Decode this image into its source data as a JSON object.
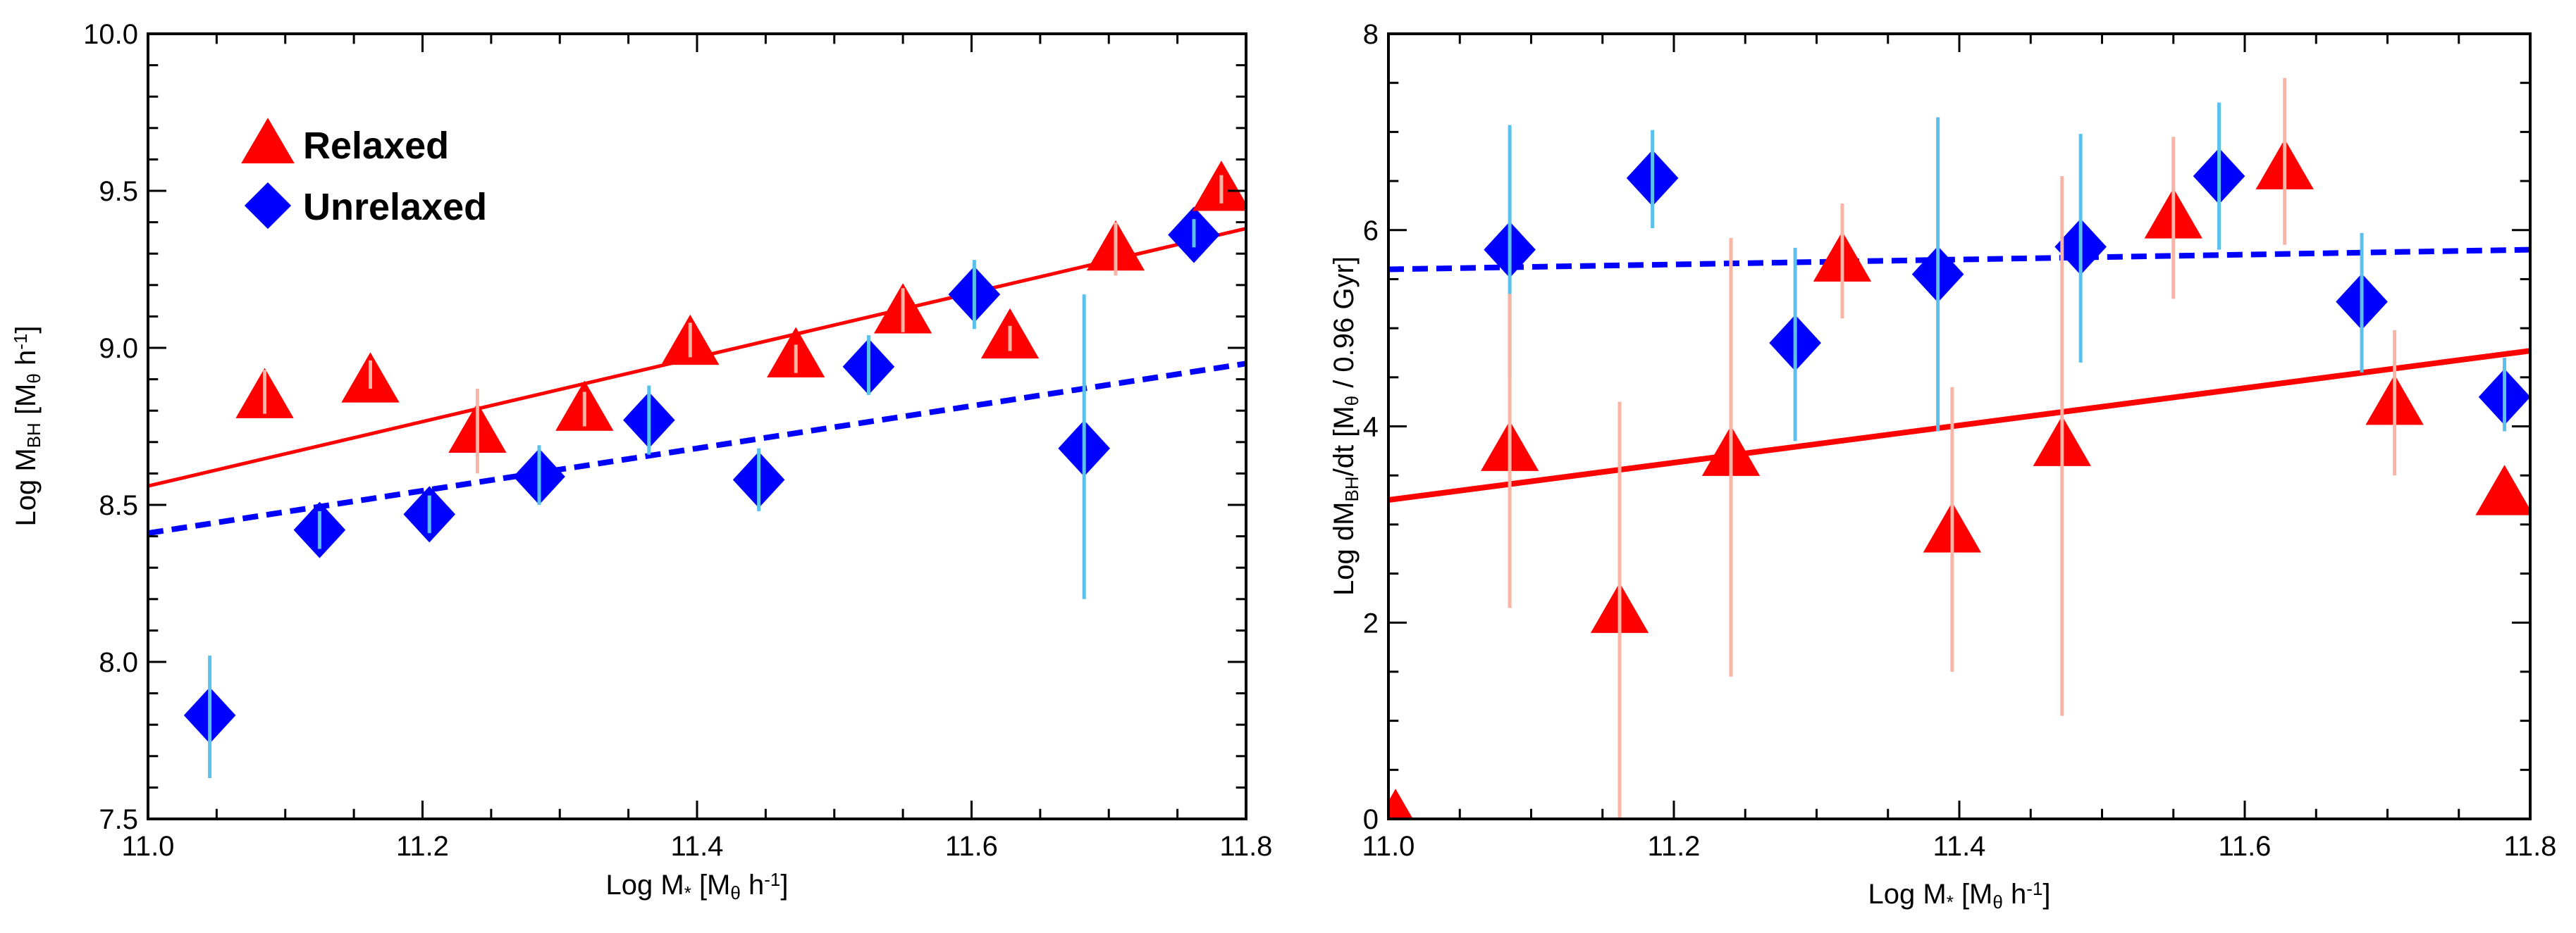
{
  "chart_data": [
    {
      "type": "scatter",
      "id": "left",
      "xlim": [
        11.0,
        11.8
      ],
      "ylim": [
        7.5,
        10.0
      ],
      "xticks": [
        11.0,
        11.2,
        11.4,
        11.6,
        11.8
      ],
      "xtick_labels": [
        "11.0",
        "11.2",
        "11.4",
        "11.6",
        "11.8"
      ],
      "yticks": [
        7.5,
        8.0,
        8.5,
        9.0,
        9.5,
        10.0
      ],
      "ytick_labels": [
        "7.5",
        "8.0",
        "8.5",
        "9.0",
        "9.5",
        "10.0"
      ],
      "xlabel": {
        "pre": "Log M",
        "sub": "*",
        "post": " [M",
        "sub2": "θ",
        "post2": " h",
        "sup": "-1",
        "end": "]"
      },
      "ylabel": {
        "pre": "Log M",
        "sub": "BH",
        "post": " [M",
        "sub2": "θ",
        "post2": " h",
        "sup": "-1",
        "end": "]"
      },
      "legend": {
        "position": "top-left",
        "entries": [
          {
            "name": "Relaxed",
            "marker": "triangle",
            "color": "#ff0000"
          },
          {
            "name": "Unrelaxed",
            "marker": "diamond",
            "color": "#0000ff"
          }
        ]
      },
      "series": [
        {
          "name": "Relaxed",
          "marker": "triangle",
          "color": "#ff0000",
          "err_color": "#f8b4a4",
          "points": [
            {
              "x": 11.085,
              "y": 8.84,
              "lo": 8.79,
              "hi": 8.93
            },
            {
              "x": 11.162,
              "y": 8.89,
              "lo": 8.87,
              "hi": 8.96
            },
            {
              "x": 11.24,
              "y": 8.73,
              "lo": 8.6,
              "hi": 8.87
            },
            {
              "x": 11.318,
              "y": 8.8,
              "lo": 8.75,
              "hi": 8.86
            },
            {
              "x": 11.395,
              "y": 9.01,
              "lo": 8.97,
              "hi": 9.08
            },
            {
              "x": 11.472,
              "y": 8.97,
              "lo": 8.92,
              "hi": 9.01
            },
            {
              "x": 11.55,
              "y": 9.11,
              "lo": 9.05,
              "hi": 9.19
            },
            {
              "x": 11.628,
              "y": 9.03,
              "lo": 8.99,
              "hi": 9.07
            },
            {
              "x": 11.705,
              "y": 9.31,
              "lo": 9.23,
              "hi": 9.4
            },
            {
              "x": 11.782,
              "y": 9.5,
              "lo": 9.46,
              "hi": 9.55
            }
          ],
          "fit": {
            "style": "solid",
            "x": [
              11.0,
              11.8
            ],
            "y": [
              8.56,
              9.38
            ]
          }
        },
        {
          "name": "Unrelaxed",
          "marker": "diamond",
          "color": "#0000ff",
          "err_color": "#5bc0eb",
          "points": [
            {
              "x": 11.045,
              "y": 7.83,
              "lo": 7.63,
              "hi": 8.02
            },
            {
              "x": 11.125,
              "y": 8.42,
              "lo": 8.36,
              "hi": 8.48
            },
            {
              "x": 11.205,
              "y": 8.47,
              "lo": 8.41,
              "hi": 8.53
            },
            {
              "x": 11.285,
              "y": 8.59,
              "lo": 8.5,
              "hi": 8.69
            },
            {
              "x": 11.365,
              "y": 8.77,
              "lo": 8.66,
              "hi": 8.88
            },
            {
              "x": 11.445,
              "y": 8.58,
              "lo": 8.48,
              "hi": 8.68
            },
            {
              "x": 11.525,
              "y": 8.94,
              "lo": 8.85,
              "hi": 9.04
            },
            {
              "x": 11.602,
              "y": 9.17,
              "lo": 9.06,
              "hi": 9.28
            },
            {
              "x": 11.682,
              "y": 8.68,
              "lo": 8.2,
              "hi": 9.17
            },
            {
              "x": 11.762,
              "y": 9.36,
              "lo": 9.32,
              "hi": 9.41
            }
          ],
          "fit": {
            "style": "dashed",
            "x": [
              11.0,
              11.8
            ],
            "y": [
              8.41,
              8.95
            ]
          }
        }
      ]
    },
    {
      "type": "scatter",
      "id": "right",
      "xlim": [
        11.0,
        11.8
      ],
      "ylim": [
        0,
        8
      ],
      "xticks": [
        11.0,
        11.2,
        11.4,
        11.6,
        11.8
      ],
      "xtick_labels": [
        "11.0",
        "11.2",
        "11.4",
        "11.6",
        "11.8"
      ],
      "yticks": [
        0,
        2,
        4,
        6,
        8
      ],
      "ytick_labels": [
        "0",
        "2",
        "4",
        "6",
        "8"
      ],
      "xlabel": {
        "pre": "Log M",
        "sub": "*",
        "post": " [M",
        "sub2": "θ",
        "post2": " h",
        "sup": "-1",
        "end": "]"
      },
      "ylabel": {
        "pre": "Log dM",
        "sub": "BH",
        "post": "/dt [M",
        "sub2": "θ",
        "post2": " / 0.96 Gyr",
        "sup": "",
        "end": "]"
      },
      "series": [
        {
          "name": "Relaxed",
          "marker": "triangle",
          "color": "#ff0000",
          "err_color": "#f8b4a4",
          "points": [
            {
              "x": 11.005,
              "y": 0.0,
              "lo": 0.0,
              "hi": 0.0
            },
            {
              "x": 11.085,
              "y": 3.75,
              "lo": 2.15,
              "hi": 5.35
            },
            {
              "x": 11.162,
              "y": 2.1,
              "lo": 0.0,
              "hi": 4.25
            },
            {
              "x": 11.24,
              "y": 3.7,
              "lo": 1.45,
              "hi": 5.92
            },
            {
              "x": 11.318,
              "y": 5.68,
              "lo": 5.1,
              "hi": 6.27
            },
            {
              "x": 11.395,
              "y": 2.92,
              "lo": 1.5,
              "hi": 4.4
            },
            {
              "x": 11.472,
              "y": 3.8,
              "lo": 1.05,
              "hi": 6.55
            },
            {
              "x": 11.55,
              "y": 6.12,
              "lo": 5.3,
              "hi": 6.95
            },
            {
              "x": 11.628,
              "y": 6.62,
              "lo": 5.85,
              "hi": 7.55
            },
            {
              "x": 11.705,
              "y": 4.22,
              "lo": 3.5,
              "hi": 4.98
            },
            {
              "x": 11.782,
              "y": 3.3,
              "lo": 3.3,
              "hi": 3.3
            }
          ],
          "fit": {
            "style": "solid",
            "x": [
              11.0,
              11.8
            ],
            "y": [
              3.25,
              4.77
            ]
          }
        },
        {
          "name": "Unrelaxed",
          "marker": "diamond",
          "color": "#0000ff",
          "err_color": "#5bc0eb",
          "points": [
            {
              "x": 11.085,
              "y": 5.8,
              "lo": 4.5,
              "hi": 7.07
            },
            {
              "x": 11.185,
              "y": 6.53,
              "lo": 6.02,
              "hi": 7.02
            },
            {
              "x": 11.285,
              "y": 4.85,
              "lo": 3.85,
              "hi": 5.82
            },
            {
              "x": 11.385,
              "y": 5.55,
              "lo": 3.95,
              "hi": 7.15
            },
            {
              "x": 11.485,
              "y": 5.83,
              "lo": 4.65,
              "hi": 6.98
            },
            {
              "x": 11.582,
              "y": 6.55,
              "lo": 5.8,
              "hi": 7.3
            },
            {
              "x": 11.682,
              "y": 5.27,
              "lo": 4.55,
              "hi": 5.97
            },
            {
              "x": 11.782,
              "y": 4.3,
              "lo": 3.95,
              "hi": 4.7
            }
          ],
          "fit": {
            "style": "dashed",
            "x": [
              11.0,
              11.8
            ],
            "y": [
              5.6,
              5.8
            ]
          }
        }
      ]
    }
  ]
}
